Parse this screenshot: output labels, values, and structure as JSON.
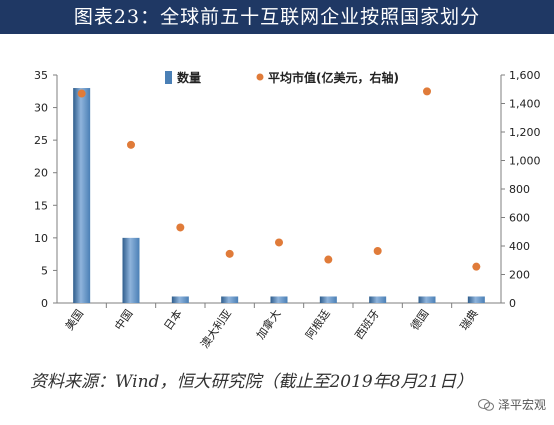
{
  "title": "图表23：全球前五十互联网企业按照国家划分",
  "source": "资料来源：Wind，恒大研究院（截止至2019年8月21日）",
  "watermark": "泽平宏观",
  "colors": {
    "bar": "#4a7fb5",
    "bar_dark": "#2f5d8c",
    "dot": "#e07b39",
    "axis": "#7f7f7f",
    "title_bg": "#1f3864"
  },
  "chart_data": {
    "type": "bar",
    "categories": [
      "美国",
      "中国",
      "日本",
      "澳大利亚",
      "加拿大",
      "阿根廷",
      "西班牙",
      "德国",
      "瑞典"
    ],
    "series": [
      {
        "name": "数量",
        "type": "bar",
        "axis": "left",
        "values": [
          33,
          10,
          1,
          1,
          1,
          1,
          1,
          1,
          1
        ]
      },
      {
        "name": "平均市值(亿美元，右轴)",
        "type": "scatter",
        "axis": "right",
        "values": [
          1470,
          1110,
          530,
          345,
          425,
          305,
          365,
          1485,
          255
        ]
      }
    ],
    "y_left": {
      "min": 0,
      "max": 35,
      "ticks": [
        "0",
        "5",
        "10",
        "15",
        "20",
        "25",
        "30",
        "35"
      ]
    },
    "y_right": {
      "min": 0,
      "max": 1600,
      "ticks": [
        "0",
        "200",
        "400",
        "600",
        "800",
        "1,000",
        "1,200",
        "1,400",
        "1,600"
      ]
    },
    "legend_position": "top",
    "grid": false
  }
}
